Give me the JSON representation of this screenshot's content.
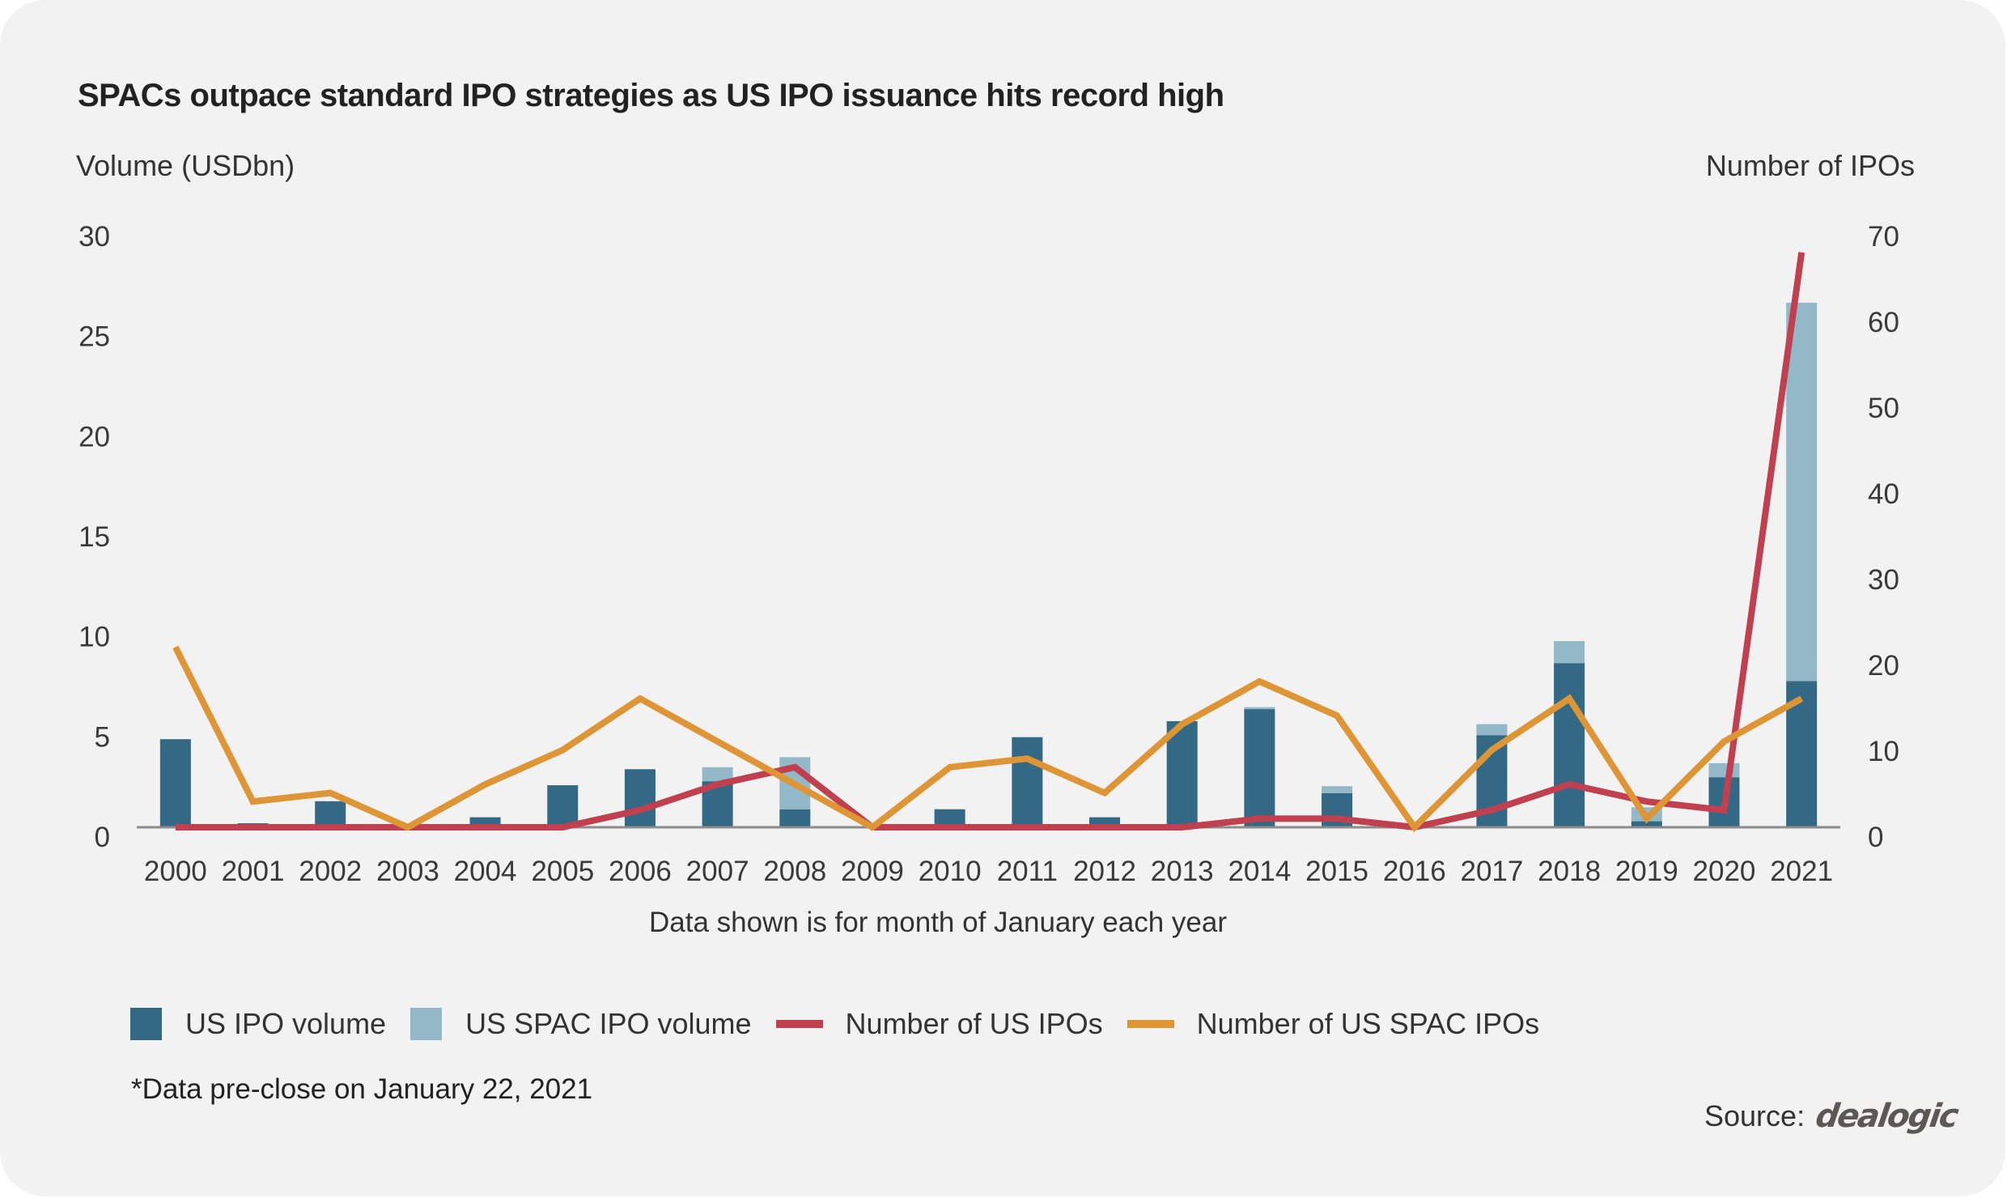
{
  "colors": {
    "ipo_volume": "#336985",
    "spac_volume": "#93b8c8",
    "us_ipo_count": "#c0404f",
    "spac_ipo_count": "#de9535",
    "axis_line": "#8c8c8c",
    "card_background": "#f2f2f2"
  },
  "chart_data": {
    "type": "bar",
    "subtype": "stacked-bar-with-lines-dual-axis",
    "title": "SPACs outpace standard IPO strategies as US IPO issuance hits record high",
    "xlabel": "Data shown is for month of January each year",
    "ylabel": "Volume (USDbn)",
    "y2label": "Number of IPOs",
    "ylim": [
      0,
      30
    ],
    "y2lim": [
      0,
      70
    ],
    "yticks": [
      "0",
      "5",
      "10",
      "15",
      "20",
      "25",
      "30"
    ],
    "y2ticks": [
      "0",
      "10",
      "20",
      "30",
      "40",
      "50",
      "60",
      "70"
    ],
    "grid": false,
    "legend_position": "bottom",
    "categories": [
      "2000",
      "2001",
      "2002",
      "2003",
      "2004",
      "2005",
      "2006",
      "2007",
      "2008",
      "2009",
      "2010",
      "2011",
      "2012",
      "2013",
      "2014",
      "2015",
      "2016",
      "2017",
      "2018",
      "2019",
      "2020",
      "2021"
    ],
    "series": [
      {
        "name": "US IPO volume",
        "type": "bar",
        "axis": "left",
        "stack": "volume",
        "values": [
          4.4,
          0.2,
          1.3,
          0,
          0.5,
          2.1,
          2.9,
          2.3,
          0.9,
          0,
          0.9,
          4.5,
          0.5,
          5.3,
          5.9,
          1.7,
          0,
          4.6,
          8.2,
          0.3,
          2.5,
          7.3
        ]
      },
      {
        "name": "US SPAC IPO volume",
        "type": "bar",
        "axis": "left",
        "stack": "volume",
        "values": [
          0,
          0,
          0,
          0,
          0,
          0,
          0,
          0.7,
          2.6,
          0,
          0,
          0,
          0,
          0,
          0.1,
          0.35,
          0,
          0.55,
          1.1,
          0.7,
          0.7,
          18.9
        ]
      },
      {
        "name": "Number of US IPOs",
        "type": "line",
        "axis": "right",
        "values": [
          0,
          0,
          0,
          0,
          0,
          0,
          2,
          5,
          7,
          0,
          0,
          0,
          0,
          0,
          1,
          1,
          0,
          2,
          5,
          3,
          2,
          67
        ]
      },
      {
        "name": "Number of US SPAC IPOs",
        "type": "line",
        "axis": "right",
        "values": [
          21,
          3,
          4,
          0,
          5,
          9,
          15,
          10,
          5,
          0,
          7,
          8,
          4,
          12,
          17,
          13,
          0,
          9,
          15,
          1,
          10,
          15
        ]
      }
    ]
  },
  "legend": [
    {
      "label": "US IPO volume",
      "kind": "box",
      "color_key": "ipo_volume"
    },
    {
      "label": "US SPAC IPO volume",
      "kind": "box",
      "color_key": "spac_volume"
    },
    {
      "label": "Number of US IPOs",
      "kind": "line",
      "color_key": "us_ipo_count"
    },
    {
      "label": "Number of US SPAC IPOs",
      "kind": "line",
      "color_key": "spac_ipo_count"
    }
  ],
  "footnote": "*Data pre-close on January 22, 2021",
  "source": {
    "label": "Source:",
    "logo_text": "dealogic"
  }
}
